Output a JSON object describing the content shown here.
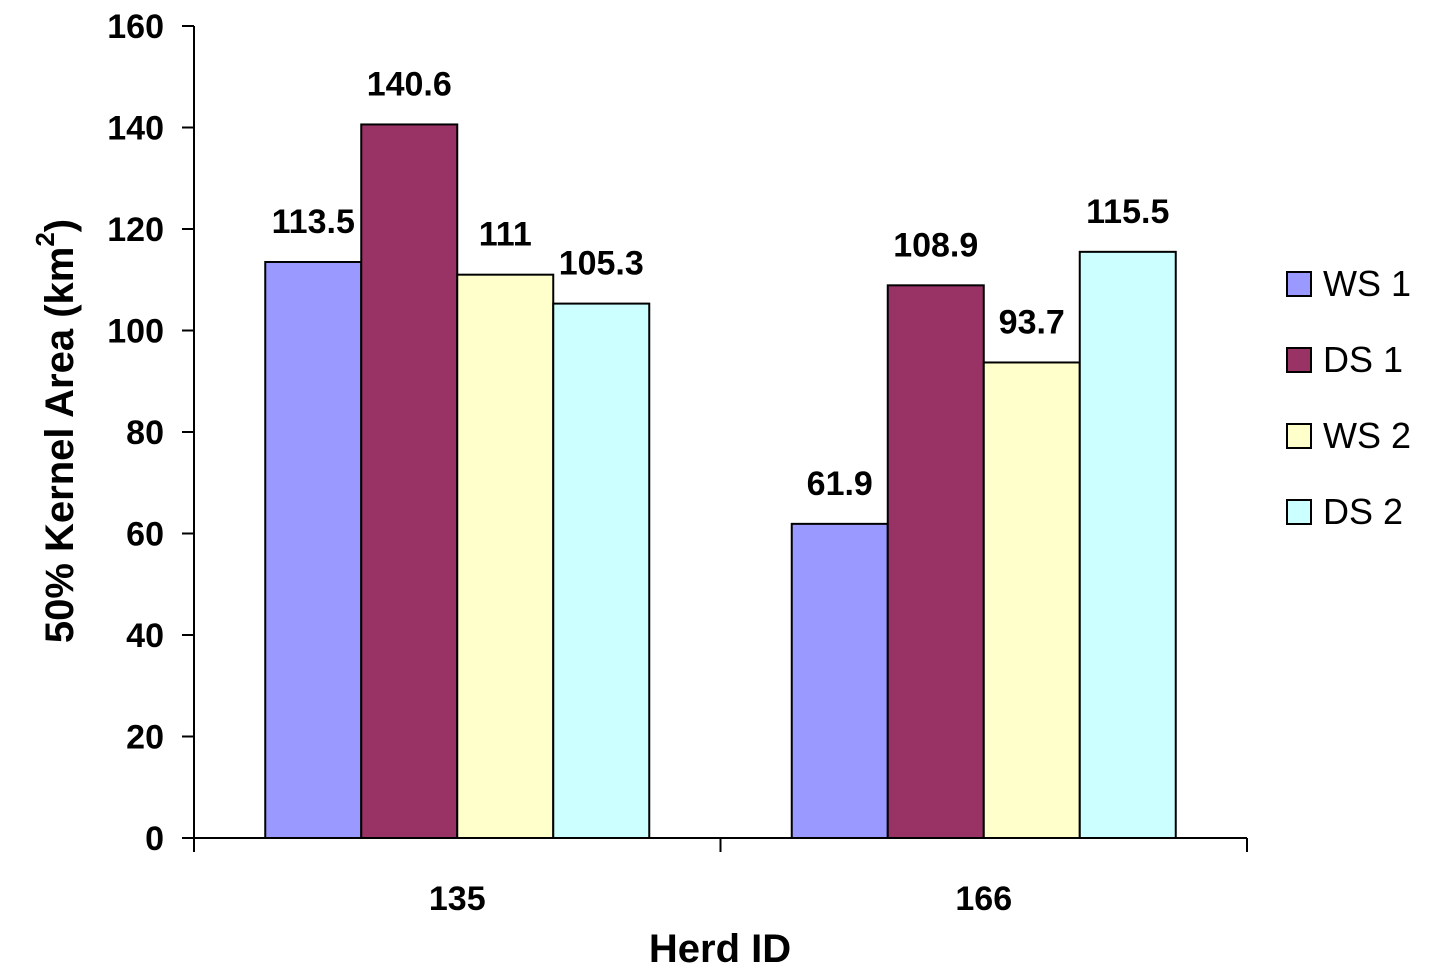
{
  "chart_data": {
    "type": "bar",
    "title": "",
    "xlabel": "Herd ID",
    "ylabel": "50% Kernel Area (km",
    "ylabel_superscript": "2",
    "ylabel_suffix": ")",
    "categories": [
      "135",
      "166"
    ],
    "ylim": [
      0,
      160
    ],
    "yticks": [
      0,
      20,
      40,
      60,
      80,
      100,
      120,
      140,
      160
    ],
    "ytick_labels": [
      "0",
      "20",
      "40",
      "60",
      "80",
      "100",
      "120",
      "140",
      "160"
    ],
    "grid": false,
    "legend_position": "right",
    "series": [
      {
        "name": "WS 1",
        "color": "#9999ff",
        "values": [
          113.5,
          61.9
        ],
        "labels": [
          "113.5",
          "61.9"
        ]
      },
      {
        "name": "DS 1",
        "color": "#993366",
        "values": [
          140.6,
          108.9
        ],
        "labels": [
          "140.6",
          "108.9"
        ]
      },
      {
        "name": "WS 2",
        "color": "#ffffcc",
        "values": [
          111,
          93.7
        ],
        "labels": [
          "111",
          "93.7"
        ]
      },
      {
        "name": "DS 2",
        "color": "#ccffff",
        "values": [
          105.3,
          115.5
        ],
        "labels": [
          "105.3",
          "115.5"
        ]
      }
    ]
  }
}
